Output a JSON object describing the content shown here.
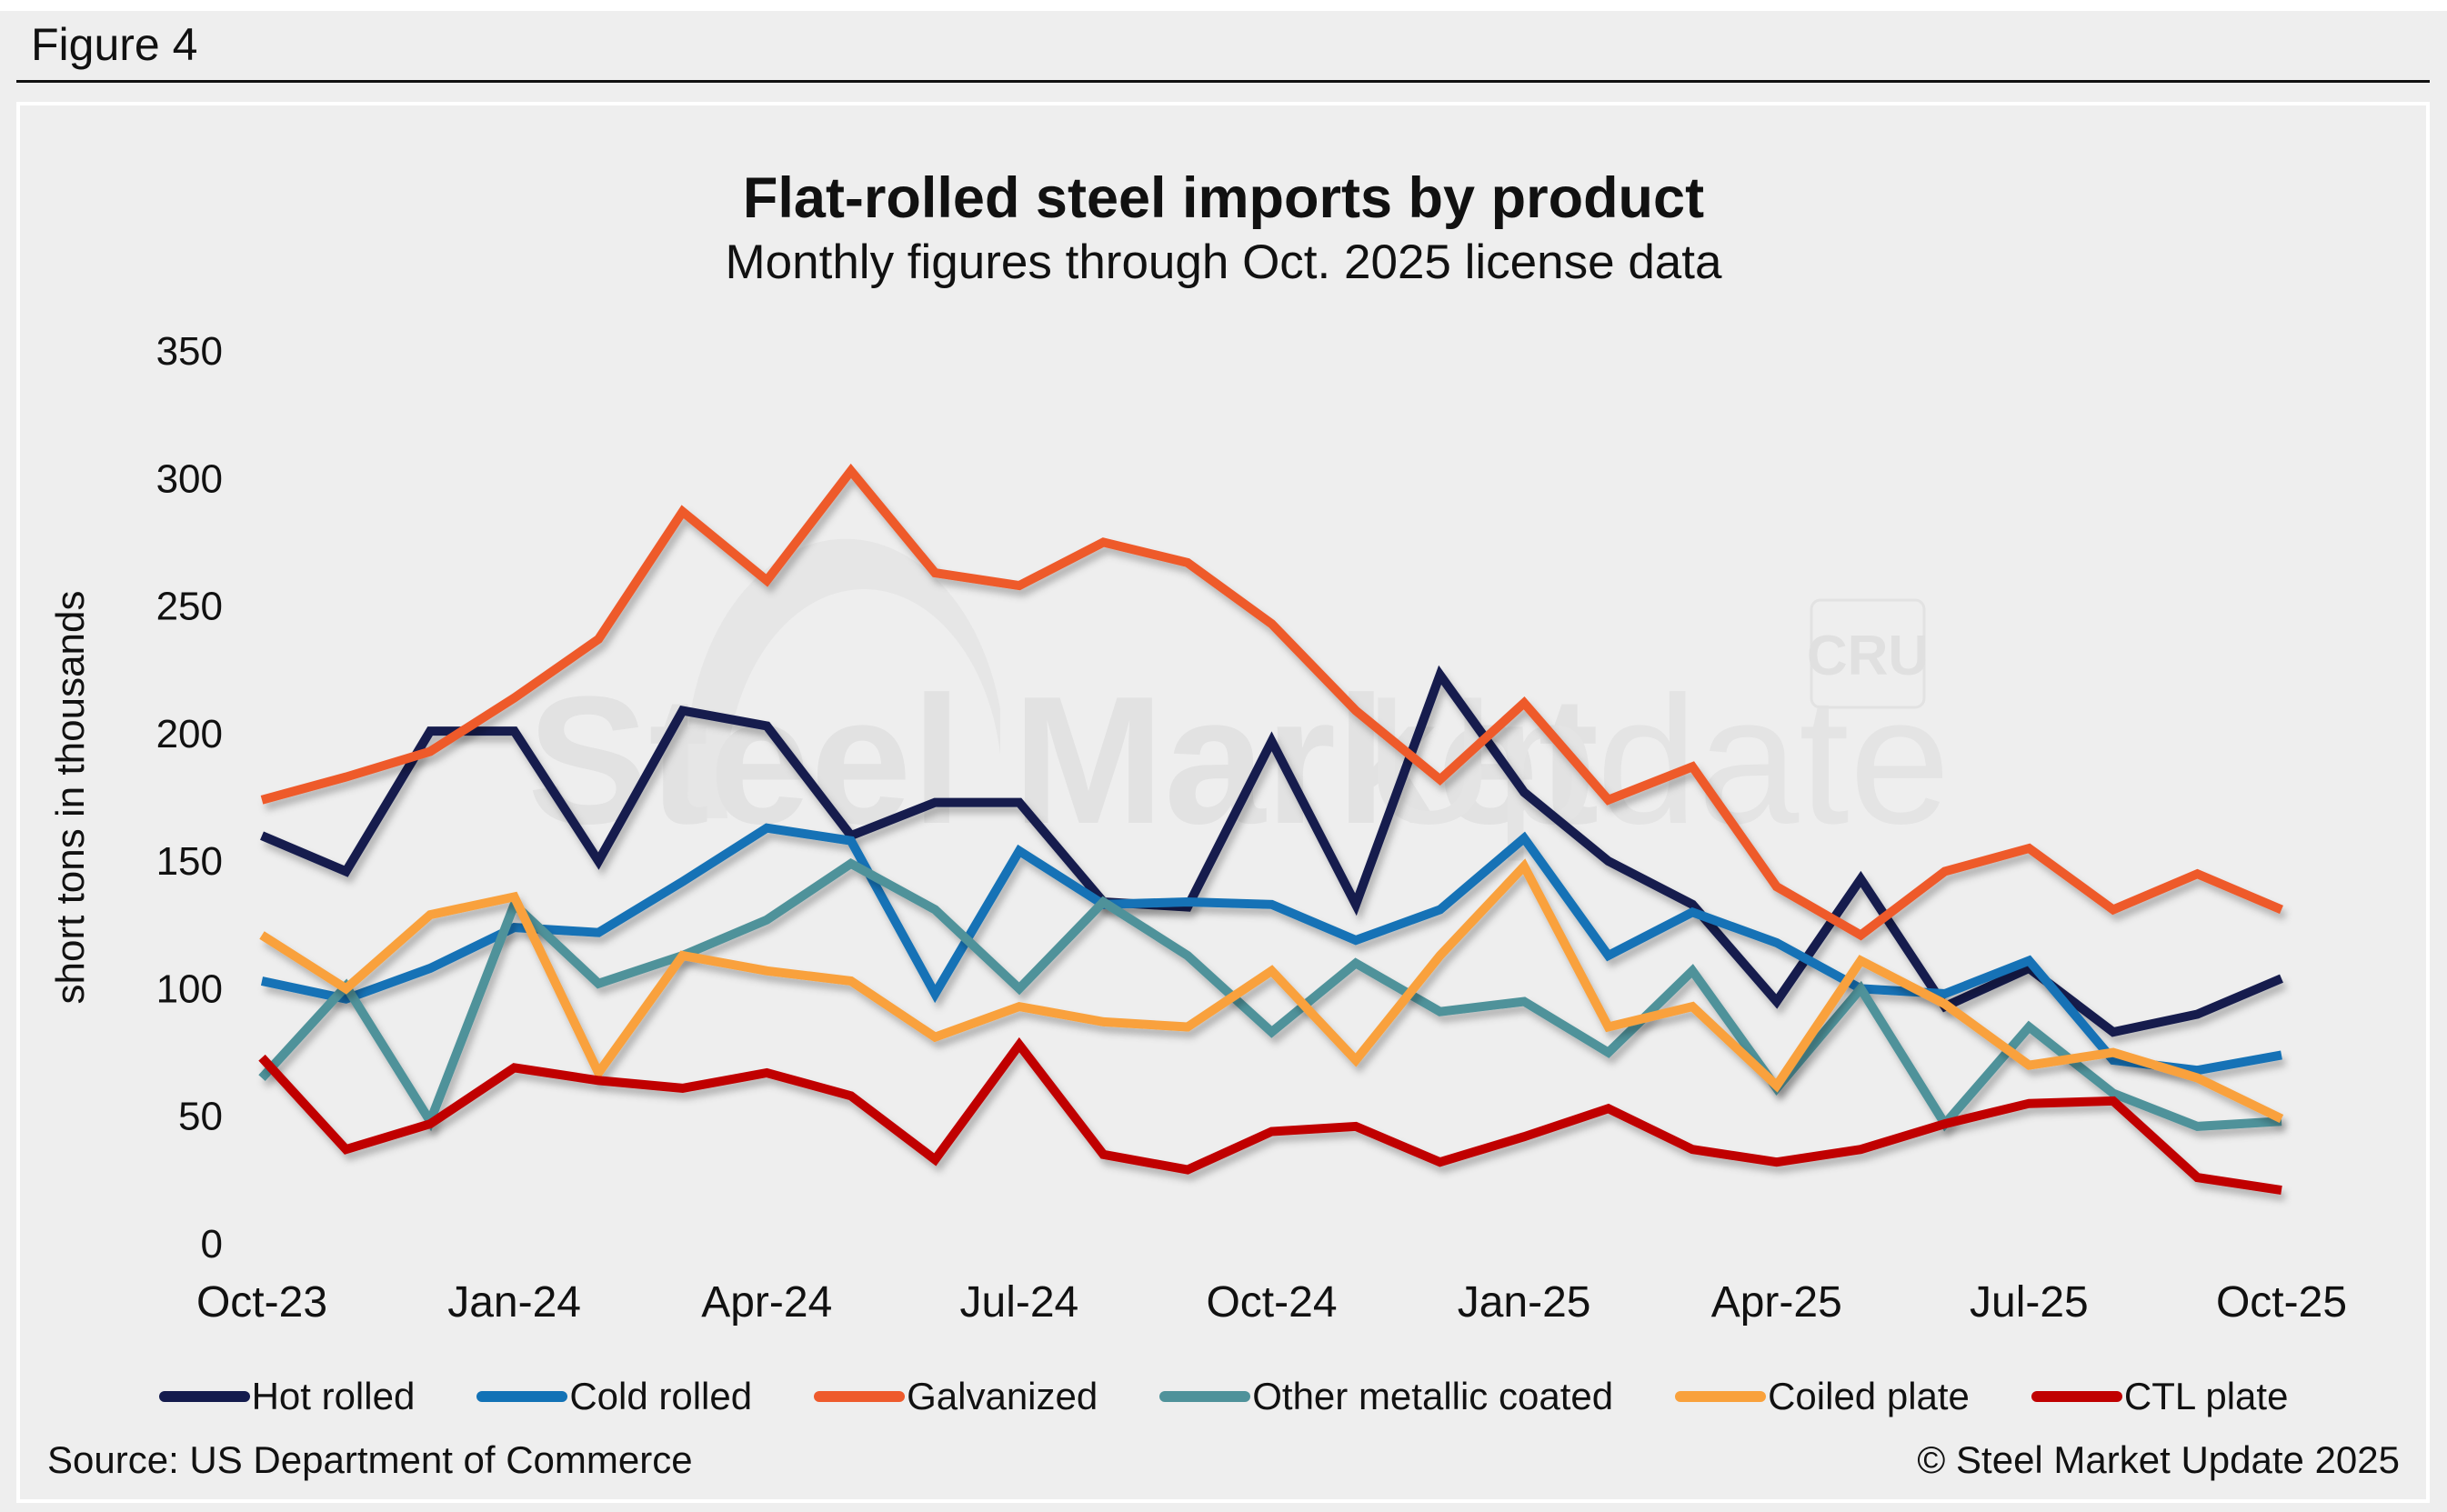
{
  "figure_label": "Figure 4",
  "watermark": {
    "brand": "Steel Market Update",
    "brand_bold": "Steel Market",
    "brand_light": "Update",
    "logo": "CRU"
  },
  "footer": {
    "source": "Source: US Department of Commerce",
    "copyright": "© Steel Market Update 2025"
  },
  "chart_data": {
    "type": "line",
    "title": "Flat-rolled steel imports by product",
    "subtitle": "Monthly figures through Oct. 2025 license data",
    "xlabel": "",
    "ylabel": "short tons in thousands",
    "ylim": [
      0,
      350
    ],
    "yticks": [
      0,
      50,
      100,
      150,
      200,
      250,
      300,
      350
    ],
    "grid": false,
    "legend_position": "bottom",
    "x": [
      "Oct-23",
      "Nov-23",
      "Dec-23",
      "Jan-24",
      "Feb-24",
      "Mar-24",
      "Apr-24",
      "May-24",
      "Jun-24",
      "Jul-24",
      "Aug-24",
      "Sep-24",
      "Oct-24",
      "Nov-24",
      "Dec-24",
      "Jan-25",
      "Feb-25",
      "Mar-25",
      "Apr-25",
      "May-25",
      "Jun-25",
      "Jul-25",
      "Aug-25",
      "Sep-25",
      "Oct-25"
    ],
    "xtick_labels": [
      "Oct-23",
      "Jan-24",
      "Apr-24",
      "Jul-24",
      "Oct-24",
      "Jan-25",
      "Apr-25",
      "Jul-25",
      "Oct-25"
    ],
    "xtick_indices": [
      0,
      3,
      6,
      9,
      12,
      15,
      18,
      21,
      24
    ],
    "series": [
      {
        "name": "Hot rolled",
        "color": "#141b4d",
        "values": [
          160,
          146,
          201,
          201,
          150,
          209,
          203,
          160,
          173,
          173,
          134,
          132,
          197,
          133,
          223,
          177,
          150,
          133,
          95,
          143,
          93,
          108,
          83,
          90,
          104
        ]
      },
      {
        "name": "Cold rolled",
        "color": "#1272b6",
        "values": [
          103,
          96,
          108,
          124,
          122,
          142,
          163,
          158,
          98,
          154,
          133,
          134,
          133,
          119,
          131,
          159,
          113,
          130,
          118,
          100,
          98,
          111,
          72,
          68,
          74
        ]
      },
      {
        "name": "Galvanized",
        "color": "#ee5a2c",
        "values": [
          174,
          183,
          193,
          214,
          237,
          287,
          260,
          303,
          263,
          258,
          275,
          267,
          243,
          209,
          182,
          212,
          174,
          187,
          140,
          121,
          146,
          155,
          131,
          145,
          131
        ]
      },
      {
        "name": "Other metallic coated",
        "color": "#4f929a",
        "values": [
          65,
          101,
          48,
          133,
          102,
          113,
          127,
          149,
          131,
          100,
          134,
          113,
          83,
          110,
          91,
          95,
          75,
          107,
          61,
          100,
          47,
          85,
          59,
          46,
          48
        ]
      },
      {
        "name": "Coiled plate",
        "color": "#f9a13c",
        "values": [
          121,
          100,
          129,
          136,
          67,
          113,
          107,
          103,
          81,
          93,
          87,
          85,
          107,
          72,
          113,
          148,
          85,
          93,
          62,
          111,
          94,
          70,
          75,
          65,
          49
        ]
      },
      {
        "name": "CTL plate",
        "color": "#c00000",
        "values": [
          73,
          37,
          47,
          69,
          64,
          61,
          67,
          58,
          33,
          78,
          35,
          29,
          44,
          46,
          32,
          42,
          53,
          37,
          32,
          37,
          47,
          55,
          56,
          26,
          21
        ]
      }
    ]
  }
}
